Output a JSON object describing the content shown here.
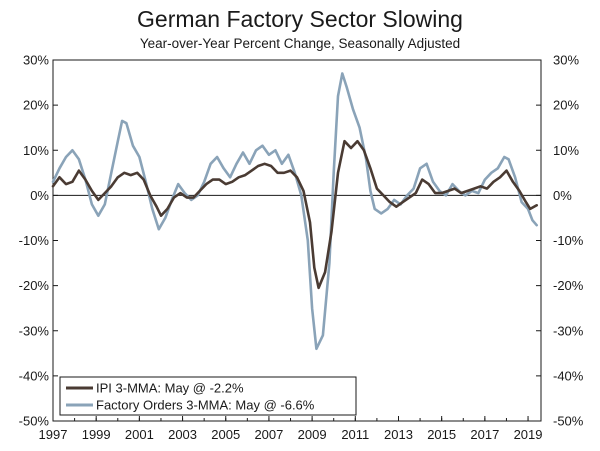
{
  "chart_data": {
    "type": "line",
    "title": "German Factory Sector Slowing",
    "subtitle": "Year-over-Year Percent Change, Seasonally Adjusted",
    "xlabel": "",
    "ylabel": "",
    "xlim": [
      1997,
      2019.6
    ],
    "ylim": [
      -50,
      30
    ],
    "y_ticks": [
      "30%",
      "20%",
      "10%",
      "0%",
      "-10%",
      "-20%",
      "-30%",
      "-40%",
      "-50%"
    ],
    "x_ticks": [
      "1997",
      "1999",
      "2001",
      "2003",
      "2005",
      "2007",
      "2009",
      "2011",
      "2013",
      "2015",
      "2017",
      "2019"
    ],
    "grid": false,
    "legend_position": "bottom-left",
    "colors": {
      "ipi": "#4a3b33",
      "orders": "#8aa3b8"
    },
    "series": [
      {
        "name": "IPI 3-MMA: May @ -2.2%",
        "key": "ipi",
        "points": [
          [
            1997.0,
            2
          ],
          [
            1997.3,
            4
          ],
          [
            1997.6,
            2.5
          ],
          [
            1997.9,
            3
          ],
          [
            1998.2,
            5.5
          ],
          [
            1998.5,
            3.5
          ],
          [
            1998.8,
            1
          ],
          [
            1999.1,
            -1
          ],
          [
            1999.4,
            0.5
          ],
          [
            1999.7,
            2
          ],
          [
            2000.0,
            4
          ],
          [
            2000.3,
            5
          ],
          [
            2000.6,
            4.5
          ],
          [
            2000.9,
            5
          ],
          [
            2001.2,
            3.5
          ],
          [
            2001.5,
            0
          ],
          [
            2001.8,
            -2.5
          ],
          [
            2002.0,
            -4.5
          ],
          [
            2002.3,
            -3
          ],
          [
            2002.6,
            -0.5
          ],
          [
            2002.9,
            0.5
          ],
          [
            2003.2,
            -0.5
          ],
          [
            2003.5,
            -0.5
          ],
          [
            2003.8,
            1
          ],
          [
            2004.1,
            2.5
          ],
          [
            2004.4,
            3.5
          ],
          [
            2004.7,
            3.5
          ],
          [
            2005.0,
            2.5
          ],
          [
            2005.3,
            3
          ],
          [
            2005.6,
            4
          ],
          [
            2005.9,
            4.5
          ],
          [
            2006.2,
            5.5
          ],
          [
            2006.5,
            6.5
          ],
          [
            2006.8,
            7
          ],
          [
            2007.1,
            6.5
          ],
          [
            2007.4,
            5
          ],
          [
            2007.7,
            5
          ],
          [
            2008.0,
            5.5
          ],
          [
            2008.3,
            4
          ],
          [
            2008.6,
            1
          ],
          [
            2008.9,
            -6
          ],
          [
            2009.1,
            -16
          ],
          [
            2009.3,
            -20.5
          ],
          [
            2009.6,
            -17
          ],
          [
            2009.9,
            -8
          ],
          [
            2010.2,
            5
          ],
          [
            2010.5,
            12
          ],
          [
            2010.8,
            10.5
          ],
          [
            2011.1,
            12
          ],
          [
            2011.4,
            10
          ],
          [
            2011.7,
            6
          ],
          [
            2012.0,
            1.5
          ],
          [
            2012.3,
            0
          ],
          [
            2012.6,
            -1.5
          ],
          [
            2012.9,
            -2.5
          ],
          [
            2013.2,
            -1.5
          ],
          [
            2013.5,
            -0.5
          ],
          [
            2013.8,
            0.5
          ],
          [
            2014.1,
            3.5
          ],
          [
            2014.4,
            2.5
          ],
          [
            2014.7,
            0.5
          ],
          [
            2015.0,
            0.5
          ],
          [
            2015.3,
            1
          ],
          [
            2015.6,
            1.5
          ],
          [
            2015.9,
            0.5
          ],
          [
            2016.2,
            1
          ],
          [
            2016.5,
            1.5
          ],
          [
            2016.8,
            2
          ],
          [
            2017.1,
            1.5
          ],
          [
            2017.4,
            3
          ],
          [
            2017.7,
            4
          ],
          [
            2018.0,
            5.5
          ],
          [
            2018.3,
            3
          ],
          [
            2018.6,
            1
          ],
          [
            2018.9,
            -1.5
          ],
          [
            2019.1,
            -3
          ],
          [
            2019.4,
            -2.2
          ]
        ]
      },
      {
        "name": "Factory Orders 3-MMA: May @ -6.6%",
        "key": "orders",
        "points": [
          [
            1997.0,
            3
          ],
          [
            1997.3,
            6
          ],
          [
            1997.6,
            8.5
          ],
          [
            1997.9,
            10
          ],
          [
            1998.2,
            8
          ],
          [
            1998.5,
            3.5
          ],
          [
            1998.8,
            -2
          ],
          [
            1999.1,
            -4.5
          ],
          [
            1999.4,
            -2
          ],
          [
            1999.7,
            5
          ],
          [
            2000.0,
            12
          ],
          [
            2000.2,
            16.5
          ],
          [
            2000.4,
            16
          ],
          [
            2000.7,
            11
          ],
          [
            2001.0,
            8.5
          ],
          [
            2001.3,
            3
          ],
          [
            2001.6,
            -3
          ],
          [
            2001.9,
            -7.5
          ],
          [
            2002.2,
            -5
          ],
          [
            2002.5,
            -1
          ],
          [
            2002.8,
            2.5
          ],
          [
            2003.1,
            0.5
          ],
          [
            2003.4,
            -1
          ],
          [
            2003.7,
            0
          ],
          [
            2004.0,
            3
          ],
          [
            2004.3,
            7
          ],
          [
            2004.6,
            8.5
          ],
          [
            2004.9,
            6
          ],
          [
            2005.2,
            4
          ],
          [
            2005.5,
            7
          ],
          [
            2005.8,
            9.5
          ],
          [
            2006.1,
            7
          ],
          [
            2006.4,
            10
          ],
          [
            2006.7,
            11
          ],
          [
            2007.0,
            9
          ],
          [
            2007.3,
            10
          ],
          [
            2007.6,
            7
          ],
          [
            2007.9,
            9
          ],
          [
            2008.2,
            5
          ],
          [
            2008.5,
            0
          ],
          [
            2008.8,
            -10
          ],
          [
            2009.0,
            -25
          ],
          [
            2009.2,
            -34
          ],
          [
            2009.5,
            -31
          ],
          [
            2009.8,
            -15
          ],
          [
            2010.0,
            5
          ],
          [
            2010.2,
            22
          ],
          [
            2010.4,
            27
          ],
          [
            2010.6,
            24
          ],
          [
            2010.9,
            19
          ],
          [
            2011.2,
            15
          ],
          [
            2011.5,
            8
          ],
          [
            2011.7,
            1
          ],
          [
            2011.9,
            -3
          ],
          [
            2012.2,
            -4
          ],
          [
            2012.5,
            -3
          ],
          [
            2012.8,
            -1
          ],
          [
            2013.1,
            -2
          ],
          [
            2013.4,
            0
          ],
          [
            2013.7,
            1.5
          ],
          [
            2014.0,
            6
          ],
          [
            2014.3,
            7
          ],
          [
            2014.6,
            3
          ],
          [
            2014.9,
            1
          ],
          [
            2015.2,
            0
          ],
          [
            2015.5,
            2.5
          ],
          [
            2015.8,
            1
          ],
          [
            2016.1,
            0
          ],
          [
            2016.4,
            1
          ],
          [
            2016.7,
            0.5
          ],
          [
            2017.0,
            3.5
          ],
          [
            2017.3,
            5
          ],
          [
            2017.6,
            6
          ],
          [
            2017.9,
            8.5
          ],
          [
            2018.1,
            8
          ],
          [
            2018.4,
            4
          ],
          [
            2018.7,
            -1.5
          ],
          [
            2019.0,
            -3
          ],
          [
            2019.2,
            -5.5
          ],
          [
            2019.4,
            -6.6
          ]
        ]
      }
    ]
  }
}
